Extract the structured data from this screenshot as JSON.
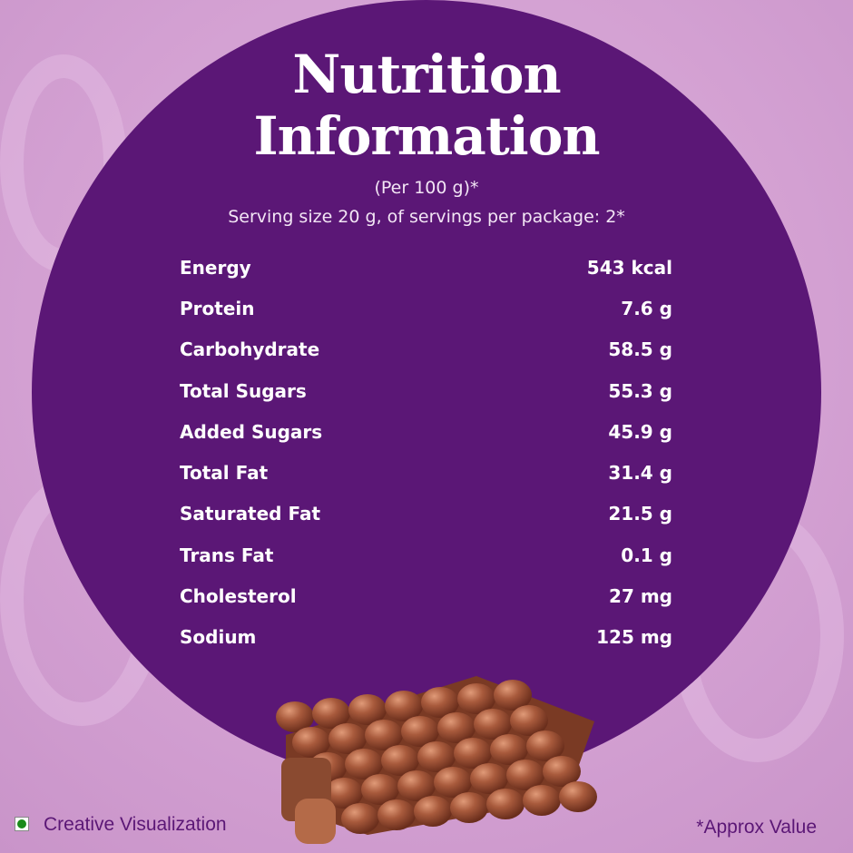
{
  "colors": {
    "background": "#d3a0d2",
    "circle": "#5b1776",
    "text": "#ffffff",
    "footer_text": "#5b1776",
    "veg_mark": "#1a8a1a"
  },
  "title_line1": "Nutrition",
  "title_line2": "Information",
  "per": "(Per 100 g)*",
  "serving": "Serving size 20 g, of servings per package: 2*",
  "nutrients": [
    {
      "name": "Energy",
      "value": "543 kcal"
    },
    {
      "name": "Protein",
      "value": "7.6 g"
    },
    {
      "name": "Carbohydrate",
      "value": "58.5 g"
    },
    {
      "name": "Total Sugars",
      "value": "55.3 g"
    },
    {
      "name": "Added Sugars",
      "value": "45.9 g"
    },
    {
      "name": "Total Fat",
      "value": "31.4 g"
    },
    {
      "name": "Saturated Fat",
      "value": "21.5 g"
    },
    {
      "name": "Trans Fat",
      "value": "0.1 g"
    },
    {
      "name": "Cholesterol",
      "value": "27 mg"
    },
    {
      "name": "Sodium",
      "value": "125 mg"
    }
  ],
  "footer": {
    "left": "Creative Visualization",
    "right": "*Approx Value",
    "left_icon": "veg-mark-icon"
  }
}
